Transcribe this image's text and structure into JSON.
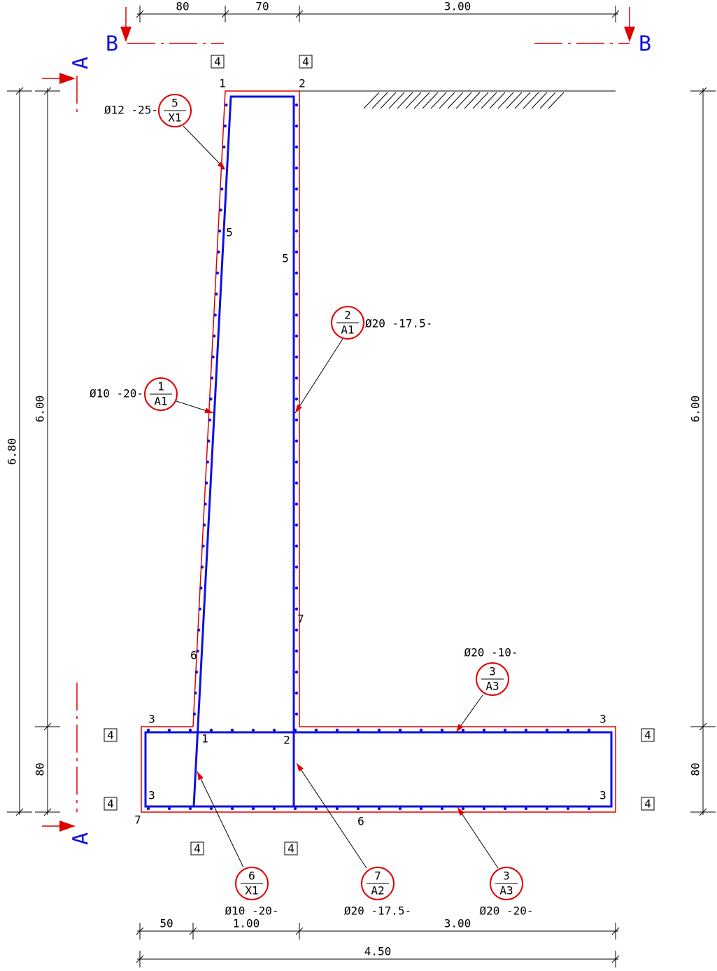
{
  "dimensions": {
    "top": [
      "80",
      "70",
      "3.00"
    ],
    "bottom": [
      "50",
      "1.00",
      "3.00"
    ],
    "bottom_total": "4.50",
    "left_total": "6.80",
    "left": [
      "6.00",
      "80"
    ],
    "right": [
      "6.00",
      "80"
    ]
  },
  "section_marks": {
    "top_left": "B",
    "top_right": "B",
    "left_top": "A",
    "left_bottom": "A"
  },
  "callouts": [
    {
      "number": "5",
      "code": "X1",
      "spec": "Ø12 -25-"
    },
    {
      "number": "1",
      "code": "A1",
      "spec": "Ø10 -20-"
    },
    {
      "number": "2",
      "code": "A1",
      "spec": "Ø20 -17.5-"
    },
    {
      "number": "3",
      "code": "A3",
      "spec": "Ø20 -10-"
    },
    {
      "number": "6",
      "code": "X1",
      "spec": "Ø10 -20-"
    },
    {
      "number": "7",
      "code": "A2",
      "spec": "Ø20 -17.5-"
    },
    {
      "number": "3",
      "code": "A3",
      "spec": "Ø20 -20-"
    }
  ],
  "point_labels": [
    "1",
    "2",
    "5",
    "5",
    "7",
    "6",
    "3",
    "3",
    "1",
    "2",
    "3",
    "3",
    "7",
    "6"
  ],
  "member_labels": [
    "4",
    "4",
    "4",
    "4",
    "4",
    "4",
    "4",
    "4"
  ]
}
